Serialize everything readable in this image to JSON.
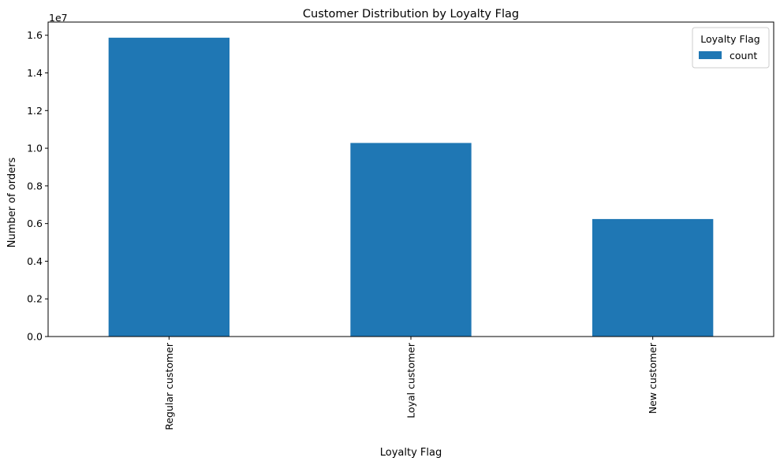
{
  "chart_data": {
    "type": "bar",
    "title": "Customer Distribution by Loyalty Flag",
    "xlabel": "Loyalty Flag",
    "ylabel": "Number of orders",
    "y_scale_label": "1e7",
    "categories": [
      "Regular customer",
      "Loyal customer",
      "New customer"
    ],
    "series": [
      {
        "name": "count",
        "values": [
          15870000,
          10280000,
          6240000
        ]
      }
    ],
    "ylim": [
      0,
      16700000
    ],
    "yticks": [
      0,
      2000000,
      4000000,
      6000000,
      8000000,
      10000000,
      12000000,
      14000000,
      16000000
    ],
    "ytick_labels": [
      "0.0",
      "0.2",
      "0.4",
      "0.6",
      "0.8",
      "1.0",
      "1.2",
      "1.4",
      "1.6"
    ],
    "legend": {
      "title": "Loyalty Flag",
      "position": "top-right"
    },
    "bar_color": "#1f77b4",
    "grid": false
  }
}
